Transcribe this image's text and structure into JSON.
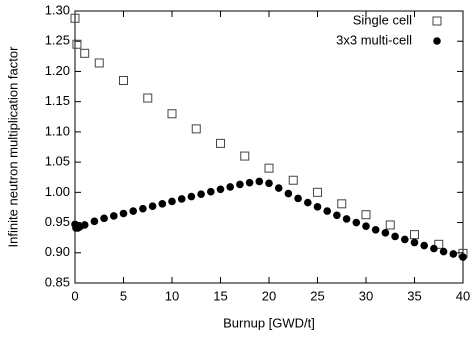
{
  "chart_data": {
    "type": "scatter",
    "x_label": "Burnup [GWD/t]",
    "y_label": "Infinite neutron multiplication factor",
    "xlim": [
      0,
      40
    ],
    "xticks": [
      0,
      5,
      10,
      15,
      20,
      25,
      30,
      35,
      40
    ],
    "ylim": [
      0.85,
      1.3
    ],
    "yticks": [
      0.85,
      {
        "value": 0.9,
        "label": "0.90"
      },
      0.95,
      {
        "value": 1.0,
        "label": "1.00"
      },
      1.05,
      {
        "value": 1.1,
        "label": "1.10"
      },
      1.15,
      {
        "value": 1.2,
        "label": "1.20"
      },
      1.25,
      {
        "value": 1.3,
        "label": "1.30"
      }
    ],
    "legend": "top-right",
    "series": [
      {
        "name": "Single cell",
        "color": "#444444",
        "marker": "square",
        "x": [
          0,
          0.2,
          1,
          2.5,
          5,
          7.5,
          10,
          12.5,
          15,
          17.5,
          20,
          22.5,
          25,
          27.5,
          30,
          32.5,
          35,
          37.5,
          40
        ],
        "values": [
          1.288,
          1.245,
          1.23,
          1.214,
          1.185,
          1.156,
          1.13,
          1.105,
          1.081,
          1.06,
          1.04,
          1.02,
          1.0,
          0.981,
          0.963,
          0.946,
          0.93,
          0.914,
          0.899
        ]
      },
      {
        "name": "3x3 multi-cell",
        "color": "#000000",
        "marker": "circle",
        "x": [
          0,
          0.1,
          0.3,
          0.5,
          1,
          2,
          3,
          4,
          5,
          6,
          7,
          8,
          9,
          10,
          11,
          12,
          13,
          14,
          15,
          16,
          17,
          18,
          19,
          20,
          21,
          22,
          23,
          24,
          25,
          26,
          27,
          28,
          29,
          30,
          31,
          32,
          33,
          34,
          35,
          36,
          37,
          38,
          39,
          40
        ],
        "values": [
          0.947,
          0.941,
          0.941,
          0.943,
          0.946,
          0.952,
          0.957,
          0.961,
          0.965,
          0.969,
          0.973,
          0.977,
          0.981,
          0.985,
          0.989,
          0.993,
          0.997,
          1.001,
          1.005,
          1.009,
          1.013,
          1.016,
          1.018,
          1.015,
          1.007,
          0.998,
          0.99,
          0.983,
          0.976,
          0.969,
          0.962,
          0.956,
          0.95,
          0.944,
          0.938,
          0.933,
          0.927,
          0.922,
          0.917,
          0.912,
          0.907,
          0.902,
          0.898,
          0.893
        ]
      }
    ]
  }
}
